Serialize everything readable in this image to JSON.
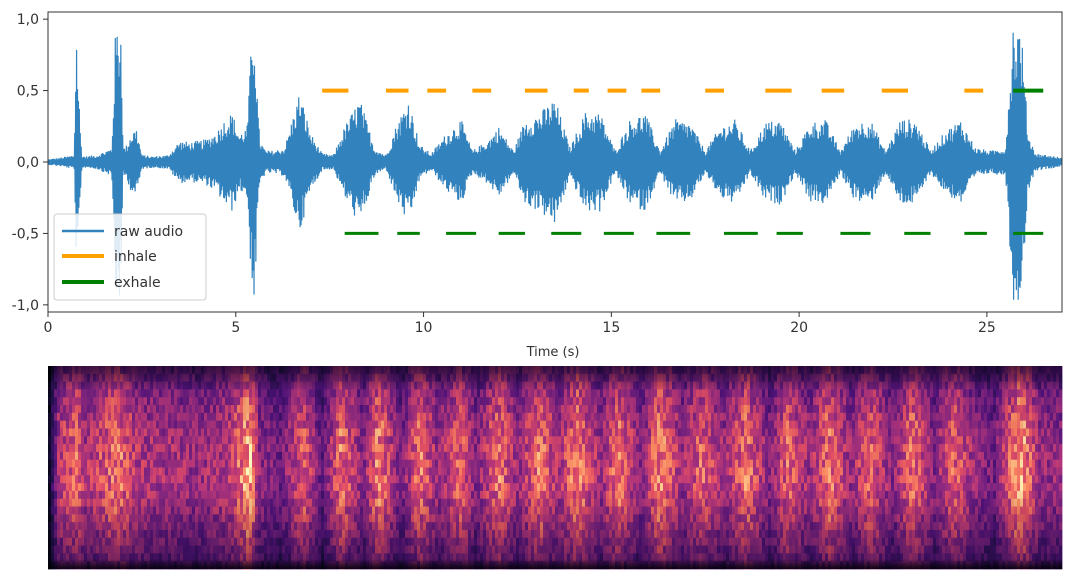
{
  "chart_data": [
    {
      "type": "line",
      "title": "",
      "xlabel": "Time (s)",
      "ylabel": "",
      "xlim": [
        0,
        27
      ],
      "ylim": [
        -1.05,
        1.05
      ],
      "grid": false,
      "legend_placement": "lower-left",
      "xticks": [
        0,
        5,
        10,
        15,
        20,
        25
      ],
      "xtick_labels": [
        "0",
        "5",
        "10",
        "15",
        "20",
        "25"
      ],
      "yticks": [
        1.0,
        0.5,
        0.0,
        -0.5,
        -1.0
      ],
      "ytick_labels": [
        "1,0",
        "0,5",
        "0,0",
        "-0,5",
        "-1,0"
      ],
      "series": [
        {
          "name": "raw audio",
          "color": "#3182bd",
          "envelope": {
            "x": [
              0,
              0.3,
              0.7,
              0.75,
              0.85,
              0.9,
              1.0,
              1.3,
              1.7,
              1.8,
              1.95,
              2.0,
              2.1,
              2.2,
              2.35,
              2.5,
              2.8,
              3.2,
              3.5,
              3.8,
              4.2,
              4.5,
              4.7,
              4.9,
              5.1,
              5.3,
              5.45,
              5.5,
              5.6,
              5.65,
              5.8,
              6.0,
              6.3,
              6.7,
              7.0,
              7.3,
              7.6,
              7.9,
              8.3,
              8.7,
              9.0,
              9.3,
              9.6,
              9.9,
              10.2,
              10.6,
              11.0,
              11.3,
              11.7,
              12.0,
              12.4,
              12.7,
              13.1,
              13.5,
              13.9,
              14.3,
              14.7,
              15.1,
              15.5,
              15.9,
              16.3,
              16.7,
              17.1,
              17.5,
              17.9,
              18.3,
              18.7,
              19.1,
              19.5,
              19.9,
              20.3,
              20.7,
              21.1,
              21.5,
              21.9,
              22.3,
              22.7,
              23.1,
              23.5,
              23.9,
              24.3,
              24.7,
              25.1,
              25.5,
              25.7,
              25.8,
              25.9,
              26.0,
              26.1,
              26.3,
              26.6,
              27.0
            ],
            "amp": [
              0.02,
              0.03,
              0.05,
              1.0,
              0.3,
              0.05,
              0.04,
              0.05,
              0.1,
              0.95,
              1.0,
              0.1,
              0.12,
              0.2,
              0.25,
              0.05,
              0.04,
              0.05,
              0.15,
              0.14,
              0.16,
              0.22,
              0.3,
              0.35,
              0.2,
              0.25,
              1.0,
              1.0,
              0.3,
              0.15,
              0.08,
              0.08,
              0.1,
              0.5,
              0.2,
              0.06,
              0.05,
              0.25,
              0.45,
              0.1,
              0.05,
              0.28,
              0.45,
              0.12,
              0.06,
              0.2,
              0.3,
              0.08,
              0.15,
              0.25,
              0.08,
              0.3,
              0.35,
              0.45,
              0.1,
              0.35,
              0.35,
              0.08,
              0.3,
              0.35,
              0.08,
              0.3,
              0.28,
              0.08,
              0.25,
              0.3,
              0.08,
              0.28,
              0.3,
              0.08,
              0.28,
              0.3,
              0.08,
              0.28,
              0.3,
              0.08,
              0.3,
              0.3,
              0.08,
              0.22,
              0.3,
              0.1,
              0.08,
              0.1,
              1.0,
              0.95,
              1.0,
              0.6,
              0.2,
              0.06,
              0.05,
              0.03
            ]
          }
        },
        {
          "name": "inhale",
          "color": "#ff9f00",
          "y": 0.5,
          "segments": [
            [
              7.3,
              8.0
            ],
            [
              9.0,
              9.6
            ],
            [
              10.1,
              10.6
            ],
            [
              11.3,
              11.8
            ],
            [
              12.7,
              13.3
            ],
            [
              14.0,
              14.4
            ],
            [
              14.9,
              15.4
            ],
            [
              15.8,
              16.3
            ],
            [
              17.5,
              18.0
            ],
            [
              19.1,
              19.8
            ],
            [
              20.6,
              21.2
            ],
            [
              22.2,
              22.9
            ],
            [
              24.4,
              24.9
            ]
          ]
        },
        {
          "name": "exhale",
          "color": "#008000",
          "ys": [
            0.5,
            -0.5
          ],
          "segments_upper": [
            [
              25.7,
              26.5
            ]
          ],
          "segments": [
            [
              7.9,
              8.8
            ],
            [
              9.3,
              9.9
            ],
            [
              10.6,
              11.4
            ],
            [
              12.0,
              12.7
            ],
            [
              13.4,
              14.2
            ],
            [
              14.8,
              15.6
            ],
            [
              16.2,
              17.1
            ],
            [
              18.0,
              18.9
            ],
            [
              19.4,
              20.1
            ],
            [
              21.1,
              21.9
            ],
            [
              22.8,
              23.5
            ],
            [
              24.4,
              25.0
            ],
            [
              25.7,
              26.5
            ]
          ]
        }
      ]
    },
    {
      "type": "heatmap",
      "title": "",
      "xlabel": "",
      "ylabel": "",
      "colormap": "magma",
      "xlim": [
        0,
        27
      ],
      "ticks": "none",
      "column_energy": {
        "x": [
          0,
          0.3,
          0.8,
          1.0,
          1.9,
          2.3,
          2.8,
          3.4,
          4.0,
          4.8,
          5.4,
          5.6,
          6.2,
          6.8,
          7.3,
          7.8,
          8.4,
          8.8,
          9.4,
          9.9,
          10.4,
          11.0,
          11.4,
          12.0,
          12.5,
          13.1,
          13.6,
          14.1,
          14.7,
          15.2,
          15.8,
          16.3,
          16.9,
          17.4,
          18.0,
          18.6,
          19.2,
          19.7,
          20.3,
          20.8,
          21.4,
          21.9,
          22.5,
          23.0,
          23.6,
          24.1,
          24.7,
          25.2,
          25.9,
          26.4,
          27.0
        ],
        "energy": [
          0.05,
          0.6,
          0.75,
          0.55,
          0.8,
          0.6,
          0.55,
          0.55,
          0.5,
          0.6,
          0.95,
          0.5,
          0.4,
          0.75,
          0.35,
          0.8,
          0.45,
          0.85,
          0.4,
          0.8,
          0.5,
          0.75,
          0.45,
          0.8,
          0.5,
          0.8,
          0.55,
          0.85,
          0.5,
          0.8,
          0.45,
          0.85,
          0.5,
          0.75,
          0.5,
          0.8,
          0.45,
          0.75,
          0.5,
          0.8,
          0.5,
          0.75,
          0.45,
          0.8,
          0.45,
          0.75,
          0.5,
          0.4,
          0.95,
          0.5,
          0.5
        ]
      }
    }
  ]
}
